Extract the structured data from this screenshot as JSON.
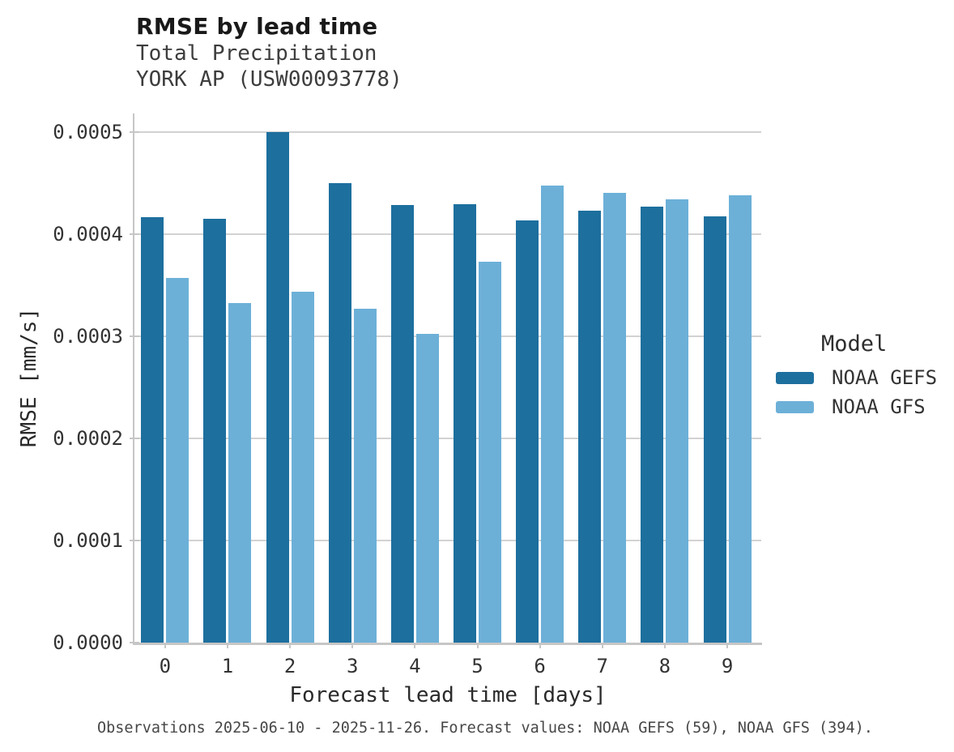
{
  "caption": "Observations 2025-06-10 - 2025-11-26. Forecast values: NOAA GEFS (59), NOAA GFS (394).",
  "chart_data": {
    "type": "bar",
    "title": "RMSE by lead time",
    "subtitle": [
      "Total Precipitation",
      "YORK AP (USW00093778)"
    ],
    "xlabel": "Forecast lead time [days]",
    "ylabel": "RMSE [mm/s]",
    "legend_title": "Model",
    "legend_position": "right",
    "grid": "horizontal",
    "categories": [
      "0",
      "1",
      "2",
      "3",
      "4",
      "5",
      "6",
      "7",
      "8",
      "9"
    ],
    "yticks": [
      "0.0000",
      "0.0001",
      "0.0002",
      "0.0003",
      "0.0004",
      "0.0005"
    ],
    "ylim": [
      0,
      0.0005
    ],
    "series": [
      {
        "name": "NOAA GEFS",
        "color": "#1d6f9e",
        "values": [
          0.000416,
          0.000415,
          0.0005,
          0.00045,
          0.000428,
          0.000429,
          0.000413,
          0.000423,
          0.000427,
          0.000417
        ]
      },
      {
        "name": "NOAA GFS",
        "color": "#6cb0d8",
        "values": [
          0.000357,
          0.000332,
          0.000343,
          0.000327,
          0.000302,
          0.000373,
          0.000447,
          0.00044,
          0.000434,
          0.000438
        ]
      }
    ]
  }
}
